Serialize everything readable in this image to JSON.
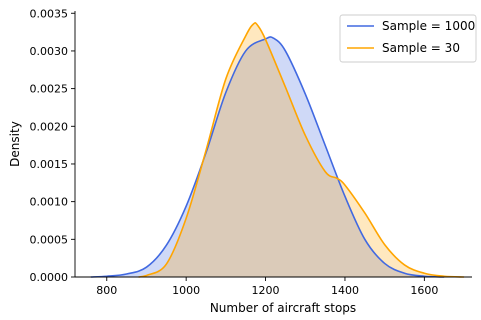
{
  "chart_data": {
    "type": "area",
    "title": "",
    "xlabel": "Number of aircraft stops",
    "ylabel": "Density",
    "xlim": [
      720,
      1720
    ],
    "ylim": [
      0,
      0.00353
    ],
    "xticks": [
      800,
      1000,
      1200,
      1400,
      1600
    ],
    "xtick_labels": [
      "800",
      "1000",
      "1200",
      "1400",
      "1600"
    ],
    "yticks": [
      0,
      0.0005,
      0.001,
      0.0015,
      0.002,
      0.0025,
      0.003,
      0.0035
    ],
    "ytick_labels": [
      "0.0000",
      "0.0005",
      "0.0010",
      "0.0015",
      "0.0020",
      "0.0025",
      "0.0030",
      "0.0035"
    ],
    "grid": false,
    "legend_position": "top-right",
    "series": [
      {
        "name": "Sample = 1000",
        "color": "#4169e1",
        "fill": "#4169e1",
        "x": [
          760,
          800,
          850,
          900,
          950,
          1000,
          1050,
          1100,
          1150,
          1200,
          1220,
          1250,
          1300,
          1350,
          1400,
          1450,
          1500,
          1550,
          1600,
          1650
        ],
        "y": [
          0.0,
          1e-05,
          4e-05,
          0.00013,
          0.00042,
          0.00094,
          0.00165,
          0.00245,
          0.003,
          0.00316,
          0.00317,
          0.003,
          0.00243,
          0.00175,
          0.00107,
          0.0005,
          0.00018,
          5e-05,
          1e-05,
          0.0
        ]
      },
      {
        "name": "Sample = 30",
        "color": "#ffa500",
        "fill": "#ffa500",
        "x": [
          880,
          900,
          950,
          1000,
          1050,
          1100,
          1150,
          1170,
          1180,
          1200,
          1250,
          1300,
          1350,
          1380,
          1400,
          1450,
          1500,
          1550,
          1600,
          1650,
          1700
        ],
        "y": [
          0.0,
          2e-05,
          0.00017,
          0.00078,
          0.00168,
          0.00263,
          0.0032,
          0.00336,
          0.00334,
          0.00315,
          0.00252,
          0.00188,
          0.0014,
          0.00131,
          0.00122,
          0.00085,
          0.00043,
          0.00016,
          5e-05,
          1e-05,
          0.0
        ]
      }
    ]
  }
}
